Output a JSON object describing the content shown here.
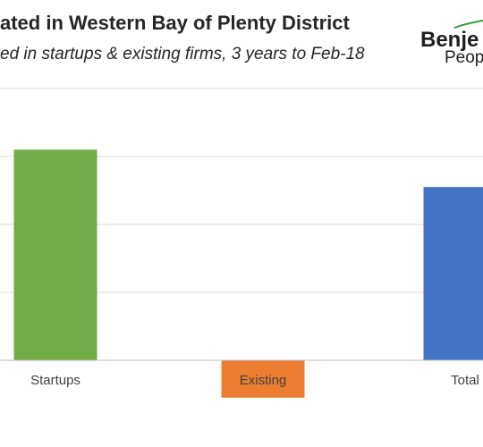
{
  "header": {
    "title": "ated in Western Bay of Plenty District",
    "subtitle": "ed in startups & existing firms, 3 years to Feb-18"
  },
  "logo": {
    "main": "Benje",
    "sub": "Peopl",
    "accent_color": "#3a9a3a"
  },
  "chart_data": {
    "type": "bar",
    "categories": [
      "Startups",
      "Existing",
      "Total"
    ],
    "values": [
      3.1,
      -0.55,
      2.55
    ],
    "colors": [
      "#70ad47",
      "#ed7d31",
      "#4472c4"
    ],
    "ylim": [
      -1,
      5
    ],
    "gridlines": [
      1,
      2,
      3,
      4
    ],
    "grid": true,
    "legend": "none",
    "xlabel": "",
    "ylabel": ""
  }
}
